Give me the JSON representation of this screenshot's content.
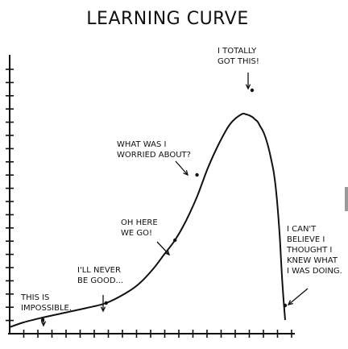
{
  "chart_data": {
    "type": "line",
    "title": "LEARNING CURVE",
    "xlabel": "",
    "ylabel": "",
    "xlim": [
      0,
      100
    ],
    "ylim": [
      0,
      100
    ],
    "grid": false,
    "x_ticks": [
      0,
      5,
      10,
      15,
      20,
      25,
      30,
      35,
      40,
      45,
      50,
      55,
      60,
      65,
      70,
      75,
      80,
      85,
      90,
      95,
      100
    ],
    "y_ticks": [
      0,
      5,
      10,
      15,
      20,
      25,
      30,
      35,
      40,
      45,
      50,
      55,
      60,
      65,
      70,
      75,
      80,
      85,
      90,
      95,
      100
    ],
    "series": [
      {
        "x": [
          0,
          5,
          12,
          20,
          28,
          35,
          42,
          47,
          52,
          56,
          60,
          64,
          68,
          72,
          76,
          80,
          84,
          86,
          88,
          89,
          90,
          91,
          92,
          93,
          94,
          95,
          96,
          97,
          98,
          99,
          100
        ],
        "y": [
          2,
          4,
          6,
          8,
          10,
          12,
          16,
          20,
          26,
          32,
          38,
          46,
          56,
          68,
          78,
          86,
          90,
          90,
          89,
          88,
          87,
          85,
          83,
          80,
          76,
          71,
          65,
          55,
          40,
          20,
          5
        ]
      }
    ],
    "annotations": [
      {
        "lines": [
          "THIS IS",
          "IMPOSSIBLE."
        ],
        "x": 12,
        "y": 5
      },
      {
        "lines": [
          "I'LL NEVER",
          "BE GOOD..."
        ],
        "x": 35,
        "y": 12
      },
      {
        "lines": [
          "OH HERE",
          "WE GO!"
        ],
        "x": 60,
        "y": 38
      },
      {
        "lines": [
          "WHAT WAS I",
          "WORRIED ABOUT?"
        ],
        "x": 68,
        "y": 65
      },
      {
        "lines": [
          "I TOTALLY",
          "GOT THIS!"
        ],
        "x": 88,
        "y": 100
      },
      {
        "lines": [
          "I CAN'T",
          "BELIEVE I",
          "THOUGHT I",
          "KNEW WHAT",
          "I WAS DOING."
        ],
        "x": 100,
        "y": 11
      }
    ]
  }
}
